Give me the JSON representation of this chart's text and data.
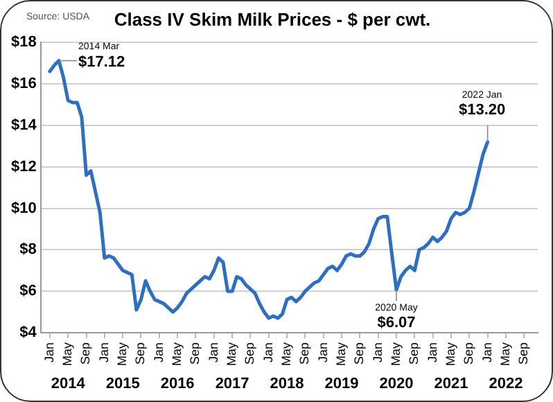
{
  "chart_data": {
    "type": "line",
    "title": "Class IV Skim Milk Prices - $ per cwt.",
    "x": [
      "2014-01",
      "2014-02",
      "2014-03",
      "2014-04",
      "2014-05",
      "2014-06",
      "2014-07",
      "2014-08",
      "2014-09",
      "2014-10",
      "2014-11",
      "2014-12",
      "2015-01",
      "2015-02",
      "2015-03",
      "2015-04",
      "2015-05",
      "2015-06",
      "2015-07",
      "2015-08",
      "2015-09",
      "2015-10",
      "2015-11",
      "2015-12",
      "2016-01",
      "2016-02",
      "2016-03",
      "2016-04",
      "2016-05",
      "2016-06",
      "2016-07",
      "2016-08",
      "2016-09",
      "2016-10",
      "2016-11",
      "2016-12",
      "2017-01",
      "2017-02",
      "2017-03",
      "2017-04",
      "2017-05",
      "2017-06",
      "2017-07",
      "2017-08",
      "2017-09",
      "2017-10",
      "2017-11",
      "2017-12",
      "2018-01",
      "2018-02",
      "2018-03",
      "2018-04",
      "2018-05",
      "2018-06",
      "2018-07",
      "2018-08",
      "2018-09",
      "2018-10",
      "2018-11",
      "2018-12",
      "2019-01",
      "2019-02",
      "2019-03",
      "2019-04",
      "2019-05",
      "2019-06",
      "2019-07",
      "2019-08",
      "2019-09",
      "2019-10",
      "2019-11",
      "2019-12",
      "2020-01",
      "2020-02",
      "2020-03",
      "2020-04",
      "2020-05",
      "2020-06",
      "2020-07",
      "2020-08",
      "2020-09",
      "2020-10",
      "2020-11",
      "2020-12",
      "2021-01",
      "2021-02",
      "2021-03",
      "2021-04",
      "2021-05",
      "2021-06",
      "2021-07",
      "2021-08",
      "2021-09",
      "2021-10",
      "2021-11",
      "2021-12",
      "2022-01"
    ],
    "series": [
      {
        "color": "#2f6fbf",
        "values": [
          16.6,
          16.9,
          17.12,
          16.3,
          15.2,
          15.1,
          15.1,
          14.4,
          11.6,
          11.8,
          10.8,
          9.8,
          7.6,
          7.7,
          7.6,
          7.3,
          7.0,
          6.9,
          6.8,
          5.1,
          5.6,
          6.5,
          6.0,
          5.6,
          5.5,
          5.4,
          5.2,
          5.0,
          5.2,
          5.5,
          5.9,
          6.1,
          6.3,
          6.5,
          6.7,
          6.6,
          7.0,
          7.6,
          7.4,
          6.0,
          6.0,
          6.7,
          6.6,
          6.3,
          6.1,
          5.9,
          5.4,
          5.0,
          4.7,
          4.8,
          4.7,
          4.9,
          5.6,
          5.7,
          5.5,
          5.7,
          6.0,
          6.2,
          6.4,
          6.5,
          6.8,
          7.1,
          7.2,
          7.0,
          7.3,
          7.7,
          7.8,
          7.7,
          7.7,
          7.9,
          8.3,
          9.0,
          9.5,
          9.6,
          9.6,
          7.8,
          6.07,
          6.7,
          7.0,
          7.2,
          7.0,
          8.0,
          8.1,
          8.3,
          8.6,
          8.4,
          8.6,
          8.9,
          9.5,
          9.8,
          9.7,
          9.8,
          10.0,
          10.8,
          11.7,
          12.6,
          13.2
        ]
      }
    ],
    "xlim": [
      "2013-11",
      "2022-12"
    ],
    "xticks": [
      {
        "value": "2014-01",
        "label": "Jan"
      },
      {
        "value": "2014-05",
        "label": "May"
      },
      {
        "value": "2014-09",
        "label": "Sep"
      },
      {
        "value": "2015-01",
        "label": "Jan"
      },
      {
        "value": "2015-05",
        "label": "May"
      },
      {
        "value": "2015-09",
        "label": "Sep"
      },
      {
        "value": "2016-01",
        "label": "Jan"
      },
      {
        "value": "2016-05",
        "label": "May"
      },
      {
        "value": "2016-09",
        "label": "Sep"
      },
      {
        "value": "2017-01",
        "label": "Jan"
      },
      {
        "value": "2017-05",
        "label": "May"
      },
      {
        "value": "2017-09",
        "label": "Sep"
      },
      {
        "value": "2018-01",
        "label": "Jan"
      },
      {
        "value": "2018-05",
        "label": "May"
      },
      {
        "value": "2018-09",
        "label": "Sep"
      },
      {
        "value": "2019-01",
        "label": "Jan"
      },
      {
        "value": "2019-05",
        "label": "May"
      },
      {
        "value": "2019-09",
        "label": "Sep"
      },
      {
        "value": "2020-01",
        "label": "Jan"
      },
      {
        "value": "2020-05",
        "label": "May"
      },
      {
        "value": "2020-09",
        "label": "Sep"
      },
      {
        "value": "2021-01",
        "label": "Jan"
      },
      {
        "value": "2021-05",
        "label": "May"
      },
      {
        "value": "2021-09",
        "label": "Sep"
      },
      {
        "value": "2022-01",
        "label": "Jan"
      },
      {
        "value": "2022-05",
        "label": "May"
      },
      {
        "value": "2022-09",
        "label": "Sep"
      }
    ],
    "ylim": [
      4,
      18
    ],
    "yticks": [
      {
        "value": 4,
        "label": "$4"
      },
      {
        "value": 6,
        "label": "$6"
      },
      {
        "value": 8,
        "label": "$8"
      },
      {
        "value": 10,
        "label": "$10"
      },
      {
        "value": 12,
        "label": "$12"
      },
      {
        "value": 14,
        "label": "$14"
      },
      {
        "value": 16,
        "label": "$16"
      },
      {
        "value": 18,
        "label": "$18"
      }
    ],
    "grid": "y",
    "legend": false,
    "annotations": [
      "Source: USDA",
      {
        "text": "2014 Mar\n$17.12",
        "x": "2014-03",
        "y": 17.12
      },
      {
        "text": "2020 May\n$6.07",
        "x": "2020-05",
        "y": 6.07
      },
      {
        "text": "2022 Jan\n$13.20",
        "x": "2022-01",
        "y": 13.2
      },
      "2014",
      "2015",
      "2016",
      "2017",
      "2018",
      "2019",
      "2020",
      "2021",
      "2022"
    ]
  }
}
